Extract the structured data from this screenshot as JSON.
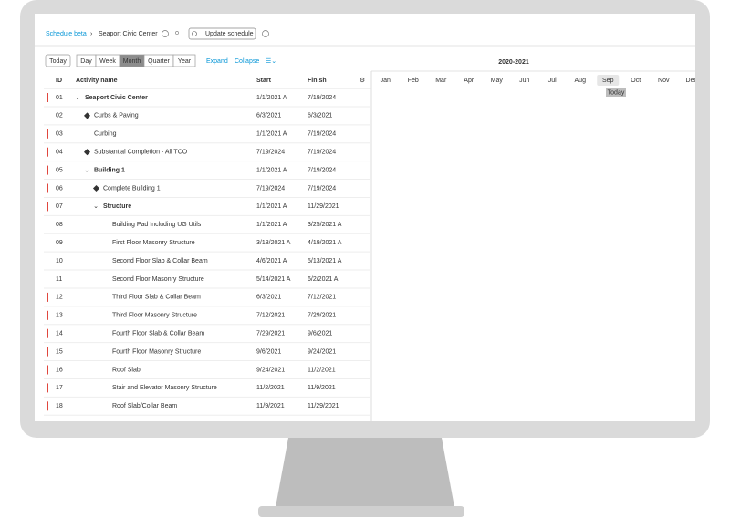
{
  "breadcrumb": {
    "app": "Schedule beta",
    "project": "Seaport Civic Center",
    "button": "Update schedule"
  },
  "toolbar": {
    "today": "Today",
    "scales": [
      "Day",
      "Week",
      "Month",
      "Quarter",
      "Year"
    ],
    "selected_scale": "Month",
    "expand": "Expand",
    "collapse": "Collapse"
  },
  "timeline": {
    "title": "2020-2021",
    "months": [
      "Jan",
      "Feb",
      "Mar",
      "Apr",
      "May",
      "Jun",
      "Jul",
      "Aug",
      "Sep",
      "Oct",
      "Nov",
      "Dec"
    ],
    "today_label": "Today"
  },
  "table": {
    "columns": [
      "ID",
      "Activity name",
      "Start",
      "Finish"
    ],
    "rows": [
      {
        "id": "01",
        "name": "Seaport Civic Center",
        "start": "1/1/2021 A",
        "finish": "7/19/2024",
        "level": 0,
        "kind": "summary",
        "critical": true
      },
      {
        "id": "02",
        "name": "Curbs & Paving",
        "start": "6/3/2021",
        "finish": "6/3/2021",
        "level": 1,
        "kind": "milestone",
        "critical": false
      },
      {
        "id": "03",
        "name": "Curbing",
        "start": "1/1/2021 A",
        "finish": "7/19/2024",
        "level": 1,
        "kind": "task",
        "critical": true
      },
      {
        "id": "04",
        "name": "Substantial Completion - All TCO",
        "start": "7/19/2024",
        "finish": "7/19/2024",
        "level": 1,
        "kind": "milestone",
        "critical": true
      },
      {
        "id": "05",
        "name": "Building 1",
        "start": "1/1/2021 A",
        "finish": "7/19/2024",
        "level": 1,
        "kind": "summary",
        "critical": true
      },
      {
        "id": "06",
        "name": "Complete Building 1",
        "start": "7/19/2024",
        "finish": "7/19/2024",
        "level": 2,
        "kind": "milestone",
        "critical": true
      },
      {
        "id": "07",
        "name": "Structure",
        "start": "1/1/2021 A",
        "finish": "11/29/2021",
        "level": 2,
        "kind": "summary",
        "critical": true
      },
      {
        "id": "08",
        "name": "Building Pad Including UG Utils",
        "start": "1/1/2021 A",
        "finish": "3/25/2021 A",
        "level": 3,
        "kind": "task",
        "critical": false
      },
      {
        "id": "09",
        "name": "First Floor Masonry Structure",
        "start": "3/18/2021 A",
        "finish": "4/19/2021 A",
        "level": 3,
        "kind": "task",
        "critical": false
      },
      {
        "id": "10",
        "name": "Second Floor Slab & Collar Beam",
        "start": "4/6/2021 A",
        "finish": "5/13/2021 A",
        "level": 3,
        "kind": "task",
        "critical": false
      },
      {
        "id": "11",
        "name": "Second Floor Masonry Structure",
        "start": "5/14/2021 A",
        "finish": "6/2/2021 A",
        "level": 3,
        "kind": "task",
        "critical": false
      },
      {
        "id": "12",
        "name": "Third Floor Slab & Collar Beam",
        "start": "6/3/2021",
        "finish": "7/12/2021",
        "level": 3,
        "kind": "task",
        "critical": true
      },
      {
        "id": "13",
        "name": "Third Floor Masonry Structure",
        "start": "7/12/2021",
        "finish": "7/29/2021",
        "level": 3,
        "kind": "task",
        "critical": true
      },
      {
        "id": "14",
        "name": "Fourth Floor Slab & Collar Beam",
        "start": "7/29/2021",
        "finish": "9/6/2021",
        "level": 3,
        "kind": "task",
        "critical": true
      },
      {
        "id": "15",
        "name": "Fourth Floor Masonry Structure",
        "start": "9/6/2021",
        "finish": "9/24/2021",
        "level": 3,
        "kind": "task",
        "critical": true
      },
      {
        "id": "16",
        "name": "Roof Slab",
        "start": "9/24/2021",
        "finish": "11/2/2021",
        "level": 3,
        "kind": "task",
        "critical": true
      },
      {
        "id": "17",
        "name": "Stair and Elevator Masonry Structure",
        "start": "11/2/2021",
        "finish": "11/9/2021",
        "level": 3,
        "kind": "task",
        "critical": true
      },
      {
        "id": "18",
        "name": "Roof Slab/Collar Beam",
        "start": "11/9/2021",
        "finish": "11/29/2021",
        "level": 3,
        "kind": "task",
        "critical": true
      }
    ]
  }
}
